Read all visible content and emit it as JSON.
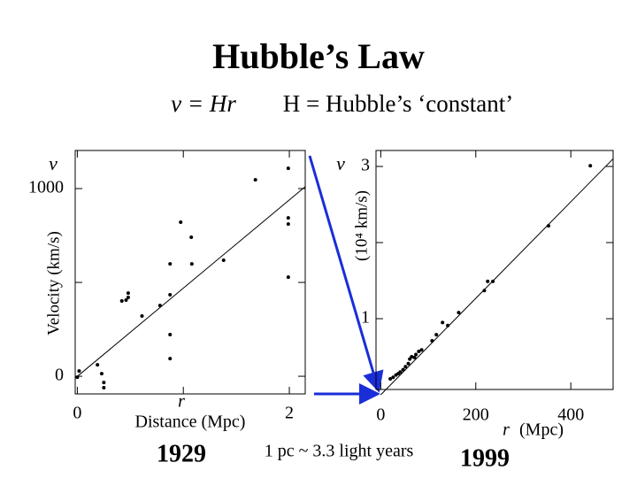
{
  "title": "Hubble’s Law",
  "subtitle": {
    "left": "v = Hr",
    "right": "H = Hubble’s ‘constant’"
  },
  "note": "1 pc ~ 3.3 light years",
  "chart_data": [
    {
      "type": "scatter",
      "year": "1929",
      "y_symbol": "v",
      "x_symbol": "r",
      "y_label": "Velocity (km/s)",
      "x_label": "Distance (Mpc)",
      "xlim": [
        -0.02,
        2.15
      ],
      "ylim": [
        -94,
        1203
      ],
      "xticks": [
        0,
        2
      ],
      "minor_xticks": [
        1
      ],
      "yticks": [
        0,
        1000
      ],
      "minor_yticks": [
        500
      ],
      "color": "#000000",
      "x": [
        0.017,
        0,
        0.19,
        0.23,
        0.25,
        0.25,
        0.42,
        0.46,
        0.48,
        0.48,
        0.61,
        0.78,
        0.875,
        0.875,
        0.875,
        0.875,
        0.975,
        1.075,
        1.08,
        1.38,
        1.68,
        1.99,
        1.99,
        1.99,
        1.99
      ],
      "values": [
        28,
        -5,
        61,
        14,
        -33,
        -61,
        401,
        406,
        420,
        443,
        321,
        377,
        434,
        222,
        94,
        599,
        821,
        741,
        599,
        618,
        1047,
        1108,
        844,
        811,
        528
      ],
      "fit_line": {
        "x": [
          -0.02,
          2.15
        ],
        "y": [
          -10,
          1010
        ]
      }
    },
    {
      "type": "scatter",
      "year": "1999",
      "y_symbol": "v",
      "x_symbol": "r",
      "y_label": "(10⁴ km/s)",
      "x_label": "(Mpc)",
      "xlim": [
        -10,
        489
      ],
      "ylim": [
        0.07,
        3.21
      ],
      "xticks": [
        0,
        200,
        400
      ],
      "yticks": [
        1,
        3
      ],
      "minor_yticks": [
        2
      ],
      "color": "#000000",
      "x": [
        20,
        26,
        32,
        37,
        41,
        47,
        52,
        58,
        61,
        65,
        71,
        74,
        80,
        86,
        108,
        117,
        130,
        141,
        164,
        218,
        225,
        236,
        353,
        441
      ],
      "values": [
        0.21,
        0.23,
        0.26,
        0.28,
        0.3,
        0.33,
        0.37,
        0.41,
        0.47,
        0.5,
        0.49,
        0.53,
        0.57,
        0.59,
        0.71,
        0.79,
        0.95,
        0.91,
        1.08,
        1.37,
        1.49,
        1.49,
        2.22,
        3.01
      ],
      "fit_line": {
        "x": [
          0,
          489
        ],
        "y": [
          0,
          3.1
        ]
      }
    }
  ]
}
